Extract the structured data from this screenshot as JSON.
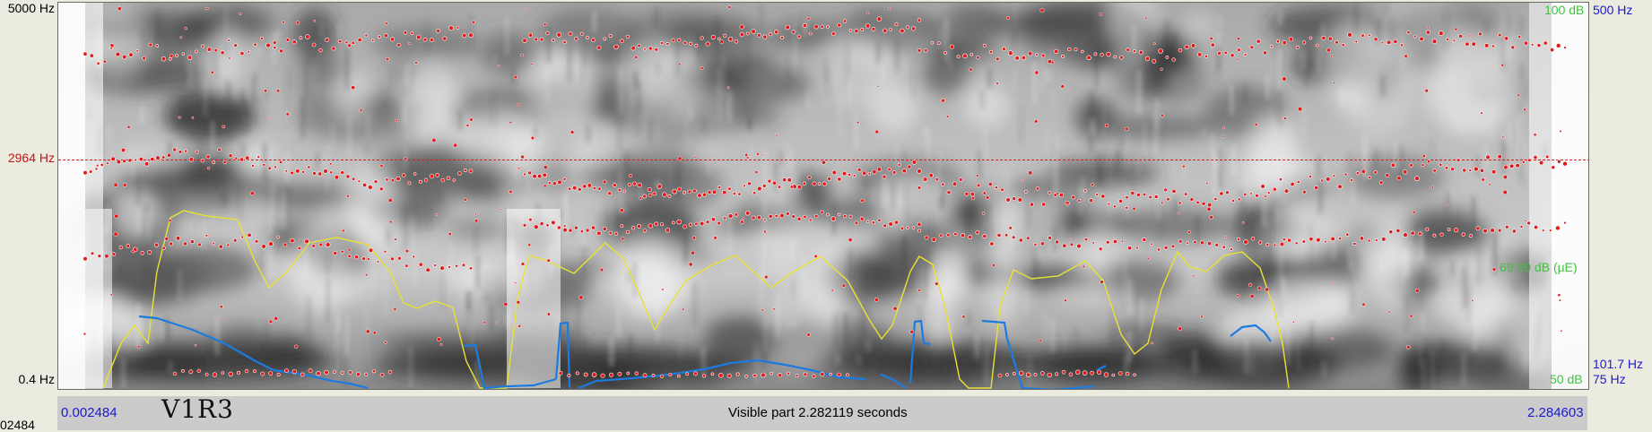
{
  "window": {
    "file_label": "V1R3",
    "cursor_time_label": "02484"
  },
  "axes": {
    "freq_max": "5000 Hz",
    "freq_min": "0.4 Hz",
    "freq_cursor": "2964 Hz",
    "intensity_max": "100 dB",
    "intensity_mid": "69.99 dB (µE)",
    "intensity_min": "50 dB",
    "pitch_max": "500 Hz",
    "pitch_current": "101.7 Hz",
    "pitch_min": "75 Hz"
  },
  "time_bar": {
    "start": "0.002484",
    "visible_part": "Visible part 2.282119 seconds",
    "end": "2.284603"
  },
  "colors": {
    "spectrogram_dark": "#1e1e1e",
    "formant_dots": "#e11b1b",
    "intensity_curve": "#e8e234",
    "pitch_curve": "#1c7be0",
    "cursor_line": "#d42020",
    "left_labels": "#000000",
    "intensity_labels": "#41c241",
    "pitch_labels": "#1a1ad0"
  },
  "spectrogram": {
    "cursor_frequency_hz": 2964,
    "frequency_range_hz": [
      0.4,
      5000
    ],
    "intensity_range_db": [
      50,
      100
    ],
    "pitch_range_hz": [
      75,
      500
    ],
    "visible_time_range_s": [
      0.002484,
      2.284603
    ]
  }
}
